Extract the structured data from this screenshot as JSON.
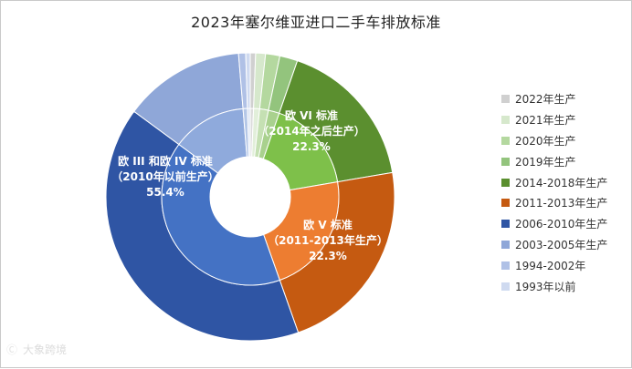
{
  "chart_data": {
    "type": "pie",
    "title": "2023年塞尔维亚进口二手车排放标准",
    "legend_position": "right",
    "outer_ring": {
      "categories": [
        "2022年生产",
        "2021年生产",
        "2020年生产",
        "2019年生产",
        "2014-2018年生产",
        "2011-2013年生产",
        "2006-2010年生产",
        "2003-2005年生产",
        "1994-2002年",
        "1993年以前"
      ],
      "values": [
        0.6,
        1.1,
        1.6,
        2.0,
        17.0,
        22.3,
        40.5,
        13.6,
        0.8,
        0.5
      ],
      "colors": [
        "#d0d0d0",
        "#d6e8cc",
        "#b4d89f",
        "#93c47d",
        "#5b8f2f",
        "#c55a11",
        "#2f55a4",
        "#8fa7d8",
        "#b0c1e6",
        "#cfdaf0"
      ]
    },
    "inner_ring": {
      "categories": [
        "欧VI标准",
        "欧V标准",
        "欧III和欧IV标准"
      ],
      "labels": [
        [
          "欧 VI 标准",
          "（2014年之后生产）",
          "22.3%"
        ],
        [
          "欧 V 标准",
          "（2011-2013年生产）",
          "22.3%"
        ],
        [
          "欧 III 和欧 IV 标准",
          "（2010年以前生产）",
          "55.4%"
        ]
      ],
      "segments": [
        {
          "values": [
            0.6,
            1.1,
            1.6,
            2.0,
            17.0
          ],
          "colors": [
            "#dcdcdc",
            "#e2efda",
            "#c5e0b3",
            "#a9d18e",
            "#7ec04a"
          ]
        },
        {
          "values": [
            22.3
          ],
          "colors": [
            "#ed7d31"
          ]
        },
        {
          "values": [
            40.5,
            13.6,
            0.8,
            0.5
          ],
          "colors": [
            "#4472c4",
            "#8faadc",
            "#b4c7e7",
            "#dae3f3"
          ]
        }
      ]
    }
  },
  "watermark": {
    "mark": "Ⓒ",
    "text": "大象跨境"
  }
}
